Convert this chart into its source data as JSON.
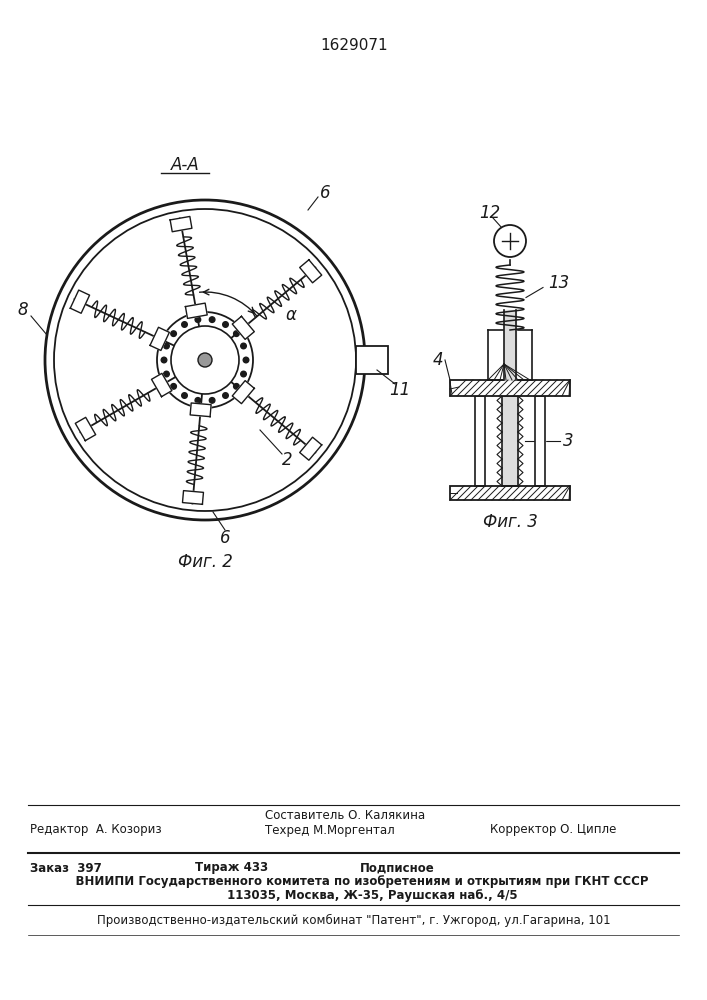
{
  "patent_number": "1629071",
  "fig2_label": "Фиг. 2",
  "fig3_label": "Фиг. 3",
  "section_label": "А-А",
  "line_color": "#1a1a1a",
  "footer_line1_left": "Редактор  А. Козориз",
  "footer_line1_center": "Составитель О. Калякина\nТехред М.Моргентал",
  "footer_line1_right": "Корректор О. Ципле",
  "footer_line2_bold": "Заказ  397",
  "footer_line2_bold2": "Тираж 433",
  "footer_line2_bold3": "Подписное",
  "footer_line2_b": "    ВНИИПИ Государственного комитета по изобретениям и открытиям при ГКНТ СССР",
  "footer_line2_c": "         113035, Москва, Ж-35, Раушская наб., 4/5",
  "footer_line3": "Производственно-издательский комбинат \"Патент\", г. Ужгород, ул.Гагарина, 101"
}
